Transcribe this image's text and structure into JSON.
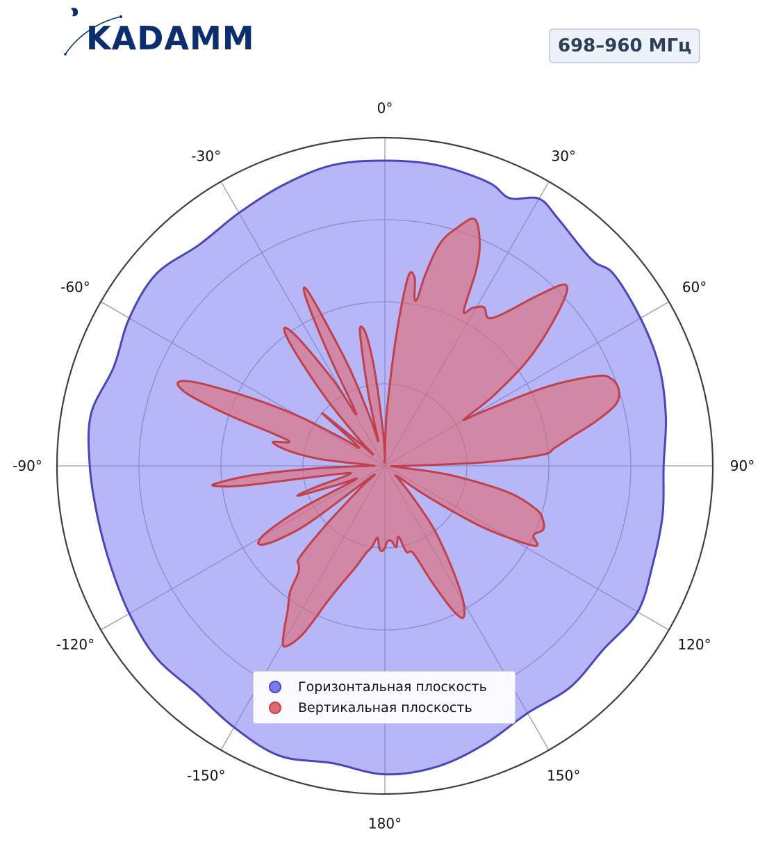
{
  "logo": {
    "text": "KADAMM"
  },
  "band_badge": "698–960 МГц",
  "colors": {
    "horizontal_fill": "#7b7bf0",
    "horizontal_line": "#4a46b8",
    "vertical_fill": "#e06a74",
    "vertical_line": "#c0404b",
    "frame": "#3a3f4a",
    "grid": "#9a9aa8",
    "logo": "#0b2e6f"
  },
  "chart_data": {
    "type": "polar-area",
    "angular_ticks": [
      "0°",
      "30°",
      "60°",
      "90°",
      "120°",
      "150°",
      "180°",
      "-150°",
      "-120°",
      "-90°",
      "-60°",
      "-30°"
    ],
    "angle_direction": "clockwise",
    "zero_location": "top",
    "r_range": [
      0,
      1
    ],
    "r_gridlines": [
      0.25,
      0.5,
      0.75
    ],
    "legend_placement": "bottom-center",
    "series": [
      {
        "name": "Горизонтальная плоскость",
        "color": "#7b7bf0",
        "points": [
          [
            0,
            0.93
          ],
          [
            10,
            0.93
          ],
          [
            20,
            0.92
          ],
          [
            25,
            0.9
          ],
          [
            30,
            0.94
          ],
          [
            35,
            0.92
          ],
          [
            45,
            0.89
          ],
          [
            50,
            0.91
          ],
          [
            60,
            0.9
          ],
          [
            70,
            0.89
          ],
          [
            80,
            0.87
          ],
          [
            90,
            0.85
          ],
          [
            100,
            0.86
          ],
          [
            110,
            0.87
          ],
          [
            120,
            0.89
          ],
          [
            130,
            0.87
          ],
          [
            140,
            0.88
          ],
          [
            150,
            0.87
          ],
          [
            160,
            0.9
          ],
          [
            170,
            0.93
          ],
          [
            180,
            0.94
          ],
          [
            -170,
            0.92
          ],
          [
            -160,
            0.94
          ],
          [
            -150,
            0.92
          ],
          [
            -140,
            0.9
          ],
          [
            -130,
            0.91
          ],
          [
            -120,
            0.9
          ],
          [
            -110,
            0.89
          ],
          [
            -100,
            0.89
          ],
          [
            -90,
            0.9
          ],
          [
            -80,
            0.91
          ],
          [
            -70,
            0.88
          ],
          [
            -60,
            0.9
          ],
          [
            -50,
            0.91
          ],
          [
            -40,
            0.88
          ],
          [
            -30,
            0.89
          ],
          [
            -20,
            0.91
          ],
          [
            -10,
            0.93
          ]
        ]
      },
      {
        "name": "Вертикальная плоскость",
        "color": "#e06a74",
        "points": [
          [
            0,
            0.02
          ],
          [
            2,
            0.16
          ],
          [
            5,
            0.4
          ],
          [
            7,
            0.58
          ],
          [
            9,
            0.58
          ],
          [
            10,
            0.52
          ],
          [
            11,
            0.52
          ],
          [
            12,
            0.6
          ],
          [
            14,
            0.7
          ],
          [
            17,
            0.76
          ],
          [
            20,
            0.8
          ],
          [
            23,
            0.74
          ],
          [
            25,
            0.66
          ],
          [
            27,
            0.53
          ],
          [
            29,
            0.55
          ],
          [
            32,
            0.57
          ],
          [
            35,
            0.55
          ],
          [
            38,
            0.59
          ],
          [
            42,
            0.7
          ],
          [
            45,
            0.78
          ],
          [
            48,
            0.72
          ],
          [
            53,
            0.56
          ],
          [
            57,
            0.4
          ],
          [
            59,
            0.3
          ],
          [
            60,
            0.28
          ],
          [
            61,
            0.34
          ],
          [
            64,
            0.55
          ],
          [
            67,
            0.7
          ],
          [
            69,
            0.74
          ],
          [
            72,
            0.75
          ],
          [
            75,
            0.73
          ],
          [
            78,
            0.66
          ],
          [
            81,
            0.58
          ],
          [
            84,
            0.52
          ],
          [
            86,
            0.48
          ],
          [
            88,
            0.3
          ],
          [
            90,
            0.06
          ],
          [
            93,
            0.02
          ],
          [
            96,
            0.05
          ],
          [
            98,
            0.2
          ],
          [
            102,
            0.38
          ],
          [
            106,
            0.48
          ],
          [
            109,
            0.51
          ],
          [
            112,
            0.52
          ],
          [
            115,
            0.5
          ],
          [
            118,
            0.52
          ],
          [
            121,
            0.4
          ],
          [
            123,
            0.3
          ],
          [
            126,
            0.15
          ],
          [
            130,
            0.05
          ],
          [
            134,
            0.06
          ],
          [
            138,
            0.12
          ],
          [
            142,
            0.24
          ],
          [
            146,
            0.35
          ],
          [
            149,
            0.45
          ],
          [
            151,
            0.5
          ],
          [
            153,
            0.52
          ],
          [
            155,
            0.48
          ],
          [
            158,
            0.38
          ],
          [
            162,
            0.28
          ],
          [
            166,
            0.27
          ],
          [
            169,
            0.22
          ],
          [
            172,
            0.25
          ],
          [
            175,
            0.23
          ],
          [
            178,
            0.23
          ],
          [
            180,
            0.25
          ],
          [
            -178,
            0.26
          ],
          [
            -176,
            0.25
          ],
          [
            -174,
            0.22
          ],
          [
            -171,
            0.25
          ],
          [
            -168,
            0.27
          ],
          [
            -164,
            0.32
          ],
          [
            -160,
            0.38
          ],
          [
            -157,
            0.45
          ],
          [
            -154,
            0.57
          ],
          [
            -151,
            0.63
          ],
          [
            -149,
            0.6
          ],
          [
            -146,
            0.53
          ],
          [
            -143,
            0.48
          ],
          [
            -141,
            0.42
          ],
          [
            -139,
            0.4
          ],
          [
            -137,
            0.38
          ],
          [
            -135,
            0.25
          ],
          [
            -132,
            0.1
          ],
          [
            -129,
            0.05
          ],
          [
            -127,
            0.28
          ],
          [
            -125,
            0.38
          ],
          [
            -123,
            0.44
          ],
          [
            -121,
            0.45
          ],
          [
            -119,
            0.4
          ],
          [
            -117,
            0.28
          ],
          [
            -115,
            0.1
          ],
          [
            -112,
            0.15
          ],
          [
            -109,
            0.28
          ],
          [
            -107,
            0.22
          ],
          [
            -104,
            0.12
          ],
          [
            -100,
            0.14
          ],
          [
            -98,
            0.42
          ],
          [
            -97,
            0.51
          ],
          [
            -96,
            0.52
          ],
          [
            -94,
            0.4
          ],
          [
            -92,
            0.2
          ],
          [
            -90,
            0.05
          ],
          [
            -87,
            0.05
          ],
          [
            -84,
            0.2
          ],
          [
            -81,
            0.3
          ],
          [
            -78,
            0.35
          ],
          [
            -76,
            0.3
          ],
          [
            -74,
            0.35
          ],
          [
            -72,
            0.5
          ],
          [
            -70,
            0.64
          ],
          [
            -68,
            0.68
          ],
          [
            -66,
            0.62
          ],
          [
            -63,
            0.45
          ],
          [
            -60,
            0.3
          ],
          [
            -57,
            0.15
          ],
          [
            -54,
            0.1
          ],
          [
            -50,
            0.25
          ],
          [
            -48,
            0.1
          ],
          [
            -46,
            0.05
          ],
          [
            -44,
            0.12
          ],
          [
            -41,
            0.28
          ],
          [
            -38,
            0.46
          ],
          [
            -36,
            0.52
          ],
          [
            -34,
            0.46
          ],
          [
            -31,
            0.3
          ],
          [
            -29,
            0.18
          ],
          [
            -27,
            0.35
          ],
          [
            -26,
            0.48
          ],
          [
            -25,
            0.58
          ],
          [
            -24,
            0.59
          ],
          [
            -23,
            0.52
          ],
          [
            -20,
            0.32
          ],
          [
            -17,
            0.15
          ],
          [
            -15,
            0.08
          ],
          [
            -13,
            0.22
          ],
          [
            -11,
            0.38
          ],
          [
            -10,
            0.43
          ],
          [
            -8,
            0.4
          ],
          [
            -6,
            0.28
          ],
          [
            -3,
            0.1
          ],
          [
            -1,
            0.03
          ]
        ]
      }
    ]
  }
}
